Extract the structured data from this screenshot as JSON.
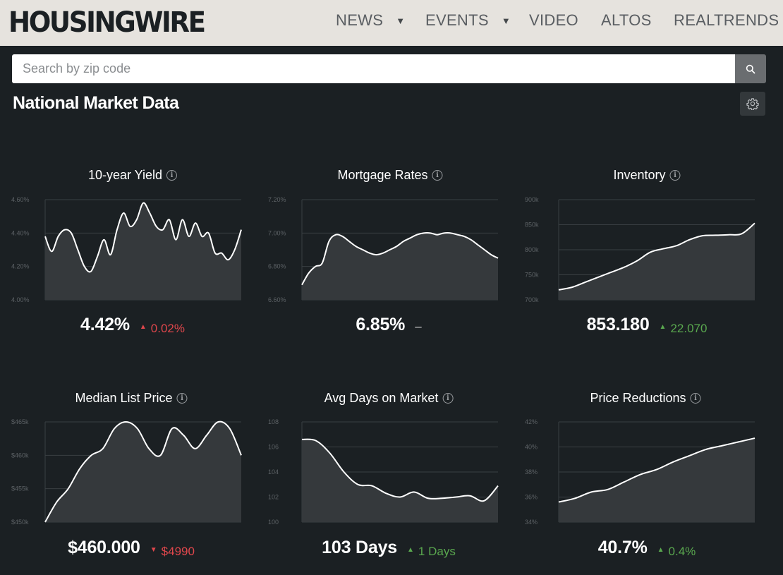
{
  "header": {
    "logo": "HOUSINGWIRE",
    "nav": [
      {
        "label": "NEWS",
        "has_dropdown": true
      },
      {
        "label": "EVENTS",
        "has_dropdown": true
      },
      {
        "label": "VIDEO",
        "has_dropdown": false
      },
      {
        "label": "ALTOS",
        "has_dropdown": false
      },
      {
        "label": "REALTRENDS",
        "has_dropdown": false
      }
    ]
  },
  "search": {
    "placeholder": "Search by zip code",
    "value": "",
    "button_icon": "search-icon"
  },
  "section": {
    "title": "National Market Data",
    "settings_icon": "gear-icon"
  },
  "colors": {
    "header_bg": "#e6e3de",
    "page_bg": "#1b2023",
    "area_fill": "#35393c",
    "line": "#ffffff",
    "red": "#e0474c",
    "green": "#5aa84f"
  },
  "cards": [
    {
      "title": "10-year Yield",
      "value": "4.42%",
      "change": "0.02%",
      "direction": "up",
      "change_color": "red"
    },
    {
      "title": "Mortgage Rates",
      "value": "6.85%",
      "change": "–",
      "direction": "none",
      "change_color": "neutral"
    },
    {
      "title": "Inventory",
      "value": "853.180",
      "change": "22.070",
      "direction": "up",
      "change_color": "green"
    },
    {
      "title": "Median List Price",
      "value": "$460.000",
      "change": "$4990",
      "direction": "down",
      "change_color": "red"
    },
    {
      "title": "Avg Days on Market",
      "value": "103 Days",
      "change": "1 Days",
      "direction": "up",
      "change_color": "green"
    },
    {
      "title": "Price Reductions",
      "value": "40.7%",
      "change": "0.4%",
      "direction": "up",
      "change_color": "green"
    }
  ],
  "chart_data": [
    {
      "type": "area",
      "title": "10-year Yield",
      "y_ticks": [
        "4.60%",
        "4.40%",
        "4.20%",
        "4.00%"
      ],
      "ylim": [
        4.0,
        4.6
      ],
      "values": [
        4.38,
        4.29,
        4.38,
        4.42,
        4.4,
        4.3,
        4.2,
        4.17,
        4.26,
        4.36,
        4.27,
        4.42,
        4.52,
        4.44,
        4.48,
        4.58,
        4.52,
        4.44,
        4.42,
        4.48,
        4.36,
        4.48,
        4.38,
        4.46,
        4.38,
        4.4,
        4.28,
        4.28,
        4.24,
        4.3,
        4.42
      ]
    },
    {
      "type": "area",
      "title": "Mortgage Rates",
      "y_ticks": [
        "7.20%",
        "7.00%",
        "6.80%",
        "6.60%"
      ],
      "ylim": [
        6.6,
        7.2
      ],
      "values": [
        6.69,
        6.76,
        6.8,
        6.82,
        6.95,
        6.99,
        6.98,
        6.95,
        6.92,
        6.9,
        6.88,
        6.87,
        6.88,
        6.9,
        6.92,
        6.95,
        6.97,
        6.99,
        7.0,
        7.0,
        6.99,
        7.0,
        7.0,
        6.99,
        6.98,
        6.96,
        6.93,
        6.9,
        6.87,
        6.85
      ]
    },
    {
      "type": "area",
      "title": "Inventory",
      "y_ticks": [
        "900k",
        "850k",
        "800k",
        "750k",
        "700k"
      ],
      "ylim": [
        700,
        900
      ],
      "values": [
        720,
        725,
        735,
        745,
        755,
        765,
        778,
        795,
        802,
        808,
        820,
        828,
        829,
        830,
        832,
        853
      ]
    },
    {
      "type": "area",
      "title": "Median List Price",
      "y_ticks": [
        "$465k",
        "$460k",
        "$455k",
        "$450k"
      ],
      "ylim": [
        450,
        465
      ],
      "values": [
        450,
        453,
        455,
        458,
        460,
        461,
        464,
        465,
        464,
        461,
        460,
        464,
        463,
        461,
        463,
        465,
        464,
        460
      ]
    },
    {
      "type": "area",
      "title": "Avg Days on Market",
      "y_ticks": [
        "108",
        "106",
        "104",
        "102",
        "100"
      ],
      "ylim": [
        100,
        108
      ],
      "values": [
        106.6,
        106.5,
        105.5,
        104.0,
        103.0,
        102.9,
        102.3,
        102.0,
        102.4,
        101.9,
        101.9,
        102.0,
        102.1,
        101.7,
        102.9
      ]
    },
    {
      "type": "area",
      "title": "Price Reductions",
      "y_ticks": [
        "42%",
        "40%",
        "38%",
        "36%",
        "34%"
      ],
      "ylim": [
        34,
        42
      ],
      "values": [
        35.6,
        35.9,
        36.4,
        36.6,
        37.2,
        37.8,
        38.2,
        38.8,
        39.3,
        39.8,
        40.1,
        40.4,
        40.7
      ]
    }
  ]
}
